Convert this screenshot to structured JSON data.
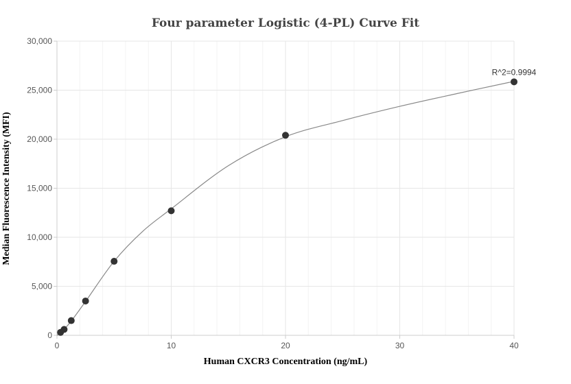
{
  "chart_data": {
    "type": "scatter",
    "title": "Four parameter Logistic (4-PL) Curve Fit",
    "xlabel": "Human CXCR3 Concentration (ng/mL)",
    "ylabel": "Median Fluorescence Intensity (MFI)",
    "xlim": [
      0,
      40
    ],
    "ylim": [
      0,
      30000
    ],
    "x_ticks": [
      0,
      10,
      20,
      30,
      40
    ],
    "x_tick_labels": [
      "0",
      "10",
      "20",
      "30",
      "40"
    ],
    "y_ticks": [
      0,
      5000,
      10000,
      15000,
      20000,
      25000,
      30000
    ],
    "y_tick_labels": [
      "0",
      "5,000",
      "10,000",
      "15,000",
      "20,000",
      "25,000",
      "30,000"
    ],
    "grid": true,
    "points": [
      {
        "x": 0.3125,
        "y": 300
      },
      {
        "x": 0.625,
        "y": 600
      },
      {
        "x": 1.25,
        "y": 1500
      },
      {
        "x": 2.5,
        "y": 3500
      },
      {
        "x": 5,
        "y": 7550
      },
      {
        "x": 10,
        "y": 12700
      },
      {
        "x": 20,
        "y": 20400
      },
      {
        "x": 40,
        "y": 25850
      }
    ],
    "fit_curve": {
      "model": "4PL",
      "points": [
        [
          0,
          0
        ],
        [
          0.3125,
          300
        ],
        [
          0.625,
          620
        ],
        [
          1.25,
          1450
        ],
        [
          2.5,
          3450
        ],
        [
          5,
          7550
        ],
        [
          7.5,
          10600
        ],
        [
          10,
          12900
        ],
        [
          15,
          17300
        ],
        [
          20,
          20250
        ],
        [
          25,
          21900
        ],
        [
          30,
          23350
        ],
        [
          35,
          24650
        ],
        [
          40,
          25900
        ]
      ]
    },
    "annotation": {
      "text": "R^2=0.9994",
      "x": 40,
      "y": 25850
    },
    "colors": {
      "point": "#333333",
      "curve": "#888888",
      "grid": "#e6e6e6",
      "axis": "#cccccc"
    }
  }
}
